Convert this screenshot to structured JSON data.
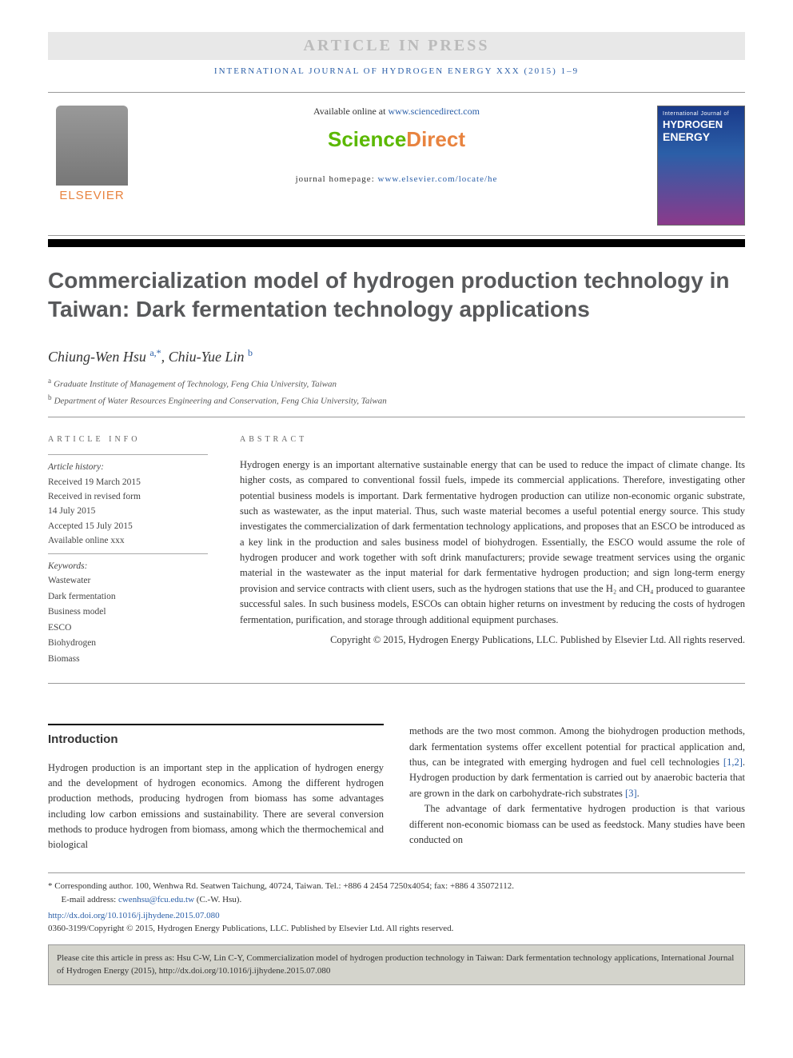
{
  "pressBanner": "ARTICLE IN PRESS",
  "journalRef": "INTERNATIONAL JOURNAL OF HYDROGEN ENERGY XXX (2015) 1–9",
  "header": {
    "availablePrefix": "Available online at ",
    "availableLink": "www.sciencedirect.com",
    "sdScience": "Science",
    "sdDirect": "Direct",
    "homepagePrefix": "journal homepage: ",
    "homepageLink": "www.elsevier.com/locate/he",
    "elsevierLabel": "ELSEVIER",
    "coverLine1": "International Journal of",
    "coverLine2": "HYDROGEN",
    "coverLine3": "ENERGY"
  },
  "colors": {
    "link": "#2b5fa8",
    "elsevierOrange": "#e8833f",
    "sdGreen": "#5bb800",
    "titleGray": "#58595b",
    "citeBoxBg": "#d4d4cc"
  },
  "title": "Commercialization model of hydrogen production technology in Taiwan: Dark fermentation technology applications",
  "authors": {
    "a1": {
      "name": "Chiung-Wen Hsu",
      "sup": "a,*"
    },
    "a2": {
      "name": "Chiu-Yue Lin",
      "sup": "b"
    }
  },
  "affiliations": {
    "a": "Graduate Institute of Management of Technology, Feng Chia University, Taiwan",
    "b": "Department of Water Resources Engineering and Conservation, Feng Chia University, Taiwan"
  },
  "articleInfo": {
    "heading": "ARTICLE INFO",
    "historyLabel": "Article history:",
    "received": "Received 19 March 2015",
    "revised1": "Received in revised form",
    "revised2": "14 July 2015",
    "accepted": "Accepted 15 July 2015",
    "online": "Available online xxx",
    "keywordsLabel": "Keywords:",
    "keywords": [
      "Wastewater",
      "Dark fermentation",
      "Business model",
      "ESCO",
      "Biohydrogen",
      "Biomass"
    ]
  },
  "abstract": {
    "heading": "ABSTRACT",
    "text": "Hydrogen energy is an important alternative sustainable energy that can be used to reduce the impact of climate change. Its higher costs, as compared to conventional fossil fuels, impede its commercial applications. Therefore, investigating other potential business models is important. Dark fermentative hydrogen production can utilize non-economic organic substrate, such as wastewater, as the input material. Thus, such waste material becomes a useful potential energy source. This study investigates the commercialization of dark fermentation technology applications, and proposes that an ESCO be introduced as a key link in the production and sales business model of biohydrogen. Essentially, the ESCO would assume the role of hydrogen producer and work together with soft drink manufacturers; provide sewage treatment services using the organic material in the wastewater as the input material for dark fermentative hydrogen production; and sign long-term energy provision and service contracts with client users, such as the hydrogen stations that use the H₂ and CH₄ produced to guarantee successful sales. In such business models, ESCOs can obtain higher returns on investment by reducing the costs of hydrogen fermentation, purification, and storage through additional equipment purchases.",
    "copyright": "Copyright © 2015, Hydrogen Energy Publications, LLC. Published by Elsevier Ltd. All rights reserved."
  },
  "body": {
    "introHeading": "Introduction",
    "p1": "Hydrogen production is an important step in the application of hydrogen energy and the development of hydrogen economics. Among the different hydrogen production methods, producing hydrogen from biomass has some advantages including low carbon emissions and sustainability. There are several conversion methods to produce hydrogen from biomass, among which the thermochemical and biological",
    "p2a": "methods are the two most common. Among the biohydrogen production methods, dark fermentation systems offer excellent potential for practical application and, thus, can be integrated with emerging hydrogen and fuel cell technologies ",
    "p2ref1": "[1,2]",
    "p2b": ". Hydrogen production by dark fermentation is carried out by anaerobic bacteria that are grown in the dark on carbohydrate-rich substrates ",
    "p2ref2": "[3]",
    "p2c": ".",
    "p3": "The advantage of dark fermentative hydrogen production is that various different non-economic biomass can be used as feedstock. Many studies have been conducted on"
  },
  "footer": {
    "corrLabel": "* Corresponding author. ",
    "corrText": "100, Wenhwa Rd. Seatwen Taichung, 40724, Taiwan. Tel.: +886 4 2454 7250x4054; fax: +886 4 35072112.",
    "emailLabel": "E-mail address: ",
    "email": "cwenhsu@fcu.edu.tw",
    "emailSuffix": " (C.-W. Hsu).",
    "doi": "http://dx.doi.org/10.1016/j.ijhydene.2015.07.080",
    "issn": "0360-3199/Copyright © 2015, Hydrogen Energy Publications, LLC. Published by Elsevier Ltd. All rights reserved.",
    "citeBox": "Please cite this article in press as: Hsu C-W, Lin C-Y, Commercialization model of hydrogen production technology in Taiwan: Dark fermentation technology applications, International Journal of Hydrogen Energy (2015), http://dx.doi.org/10.1016/j.ijhydene.2015.07.080"
  }
}
